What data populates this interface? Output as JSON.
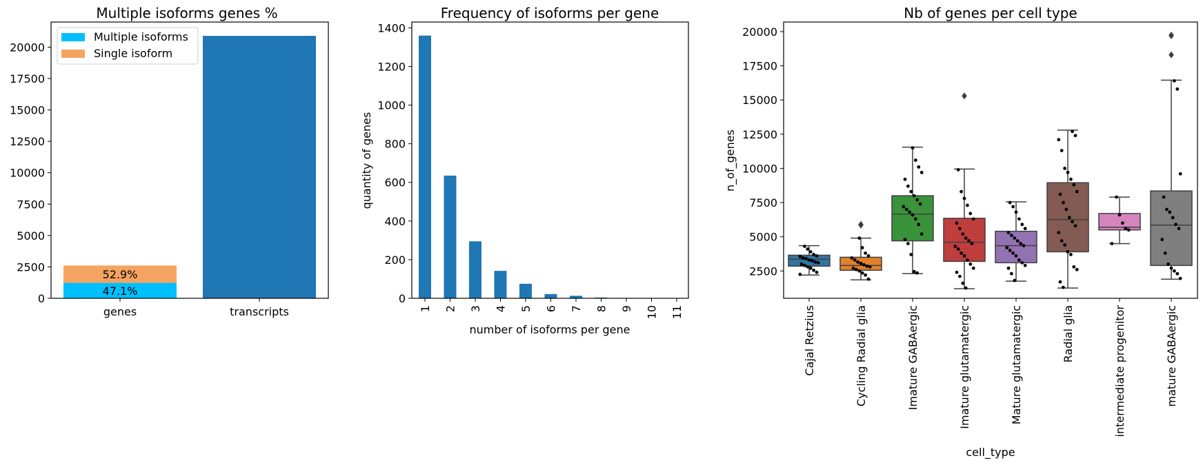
{
  "chart_data": [
    {
      "type": "bar",
      "title": "Multiple isoforms genes %",
      "xlabel": "",
      "ylabel": "",
      "categories": [
        "genes",
        "transcripts"
      ],
      "series": [
        {
          "name": "Multiple isoforms",
          "color": "#00bfff",
          "values": [
            1230,
            null
          ]
        },
        {
          "name": "Single isoform",
          "color": "#f4a460",
          "values": [
            1380,
            null
          ]
        },
        {
          "name": "",
          "color": "#1f77b4",
          "values": [
            null,
            20900
          ]
        }
      ],
      "bar_labels": [
        "47.1%",
        "52.9%"
      ],
      "ylim": [
        0,
        22000
      ],
      "yticks": [
        0,
        2500,
        5000,
        7500,
        10000,
        12500,
        15000,
        17500,
        20000
      ],
      "legend": "top-left"
    },
    {
      "type": "bar",
      "title": "Frequency of isoforms per gene",
      "xlabel": "number of isoforms per gene",
      "ylabel": "quantity of genes",
      "categories": [
        "1",
        "2",
        "3",
        "4",
        "5",
        "6",
        "7",
        "8",
        "9",
        "10",
        "11"
      ],
      "values": [
        1360,
        635,
        295,
        142,
        75,
        22,
        13,
        4,
        2,
        1,
        1
      ],
      "color": "#1f77b4",
      "ylim": [
        0,
        1430
      ],
      "yticks": [
        0,
        200,
        400,
        600,
        800,
        1000,
        1200,
        1400
      ]
    },
    {
      "type": "box",
      "title": "Nb of genes per cell type",
      "xlabel": "cell_type",
      "ylabel": "n_of_genes",
      "categories": [
        "Cajal Retzius",
        "Cycling Radial glia",
        "Imature GABAergic",
        "Imature glutamatergic",
        "Mature glutamatergic",
        "Radial glia",
        "intermediate progenitor",
        "mature GABAergic"
      ],
      "ylim": [
        500,
        20700
      ],
      "yticks": [
        2500,
        5000,
        7500,
        10000,
        12500,
        15000,
        17500,
        20000
      ],
      "boxes": [
        {
          "color": "#3274a1",
          "whislo": 2200,
          "q1": 2850,
          "med": 3350,
          "q3": 3650,
          "whishi": 4350,
          "fliers": [],
          "points": [
            2250,
            2400,
            2550,
            2700,
            2800,
            2900,
            3000,
            3100,
            3150,
            3250,
            3300,
            3400,
            3450,
            3550,
            3600,
            3700,
            3900,
            4100,
            4300
          ]
        },
        {
          "color": "#e1812c",
          "whislo": 1850,
          "q1": 2550,
          "med": 2900,
          "q3": 3500,
          "whishi": 4900,
          "fliers": [
            5850,
            5900
          ],
          "points": [
            1900,
            2200,
            2350,
            2500,
            2600,
            2700,
            2800,
            2850,
            2950,
            3050,
            3150,
            3300,
            3450,
            3600,
            3800,
            4200,
            4900
          ]
        },
        {
          "color": "#3a923a",
          "whislo": 2300,
          "q1": 4700,
          "med": 6650,
          "q3": 8000,
          "whishi": 11550,
          "fliers": [],
          "points": [
            2350,
            2450,
            3700,
            4500,
            4800,
            5200,
            5900,
            6300,
            6600,
            6800,
            7000,
            7200,
            7400,
            7700,
            8000,
            8300,
            8700,
            9200,
            9700,
            10100,
            10600,
            11500
          ]
        },
        {
          "color": "#c03d3e",
          "whislo": 1200,
          "q1": 3200,
          "med": 4600,
          "q3": 6350,
          "whishi": 9950,
          "fliers": [
            15300
          ],
          "points": [
            1250,
            1600,
            2100,
            2400,
            2700,
            3000,
            3300,
            3600,
            3800,
            4100,
            4300,
            4500,
            4700,
            4900,
            5200,
            5600,
            6000,
            6300,
            6700,
            7300,
            7800,
            8300,
            9900
          ]
        },
        {
          "color": "#9372b2",
          "whislo": 1750,
          "q1": 3100,
          "med": 4350,
          "q3": 5400,
          "whishi": 7550,
          "fliers": [],
          "points": [
            1800,
            2300,
            2700,
            2900,
            3100,
            3300,
            3600,
            3800,
            4000,
            4200,
            4350,
            4500,
            4700,
            4900,
            5100,
            5300,
            5600,
            5900,
            6300,
            6800,
            7200,
            7500
          ]
        },
        {
          "color": "#845b53",
          "whislo": 1250,
          "q1": 3900,
          "med": 6250,
          "q3": 8950,
          "whishi": 12800,
          "fliers": [],
          "points": [
            1300,
            1700,
            2600,
            2800,
            3700,
            3900,
            4400,
            4700,
            5300,
            5800,
            6100,
            6400,
            7000,
            7500,
            8100,
            8300,
            8800,
            9200,
            9700,
            10000,
            11300,
            12100,
            12400,
            12700
          ]
        },
        {
          "color": "#d684bd",
          "whislo": 4500,
          "q1": 5500,
          "med": 5700,
          "q3": 6700,
          "whishi": 7900,
          "fliers": [],
          "points": [
            4500,
            5500,
            5600,
            6000,
            6600,
            7900
          ]
        },
        {
          "color": "#7f7f7f",
          "whislo": 1900,
          "q1": 2900,
          "med": 5850,
          "q3": 8350,
          "whishi": 16450,
          "fliers": [
            18300,
            19700,
            19750
          ],
          "points": [
            1950,
            2300,
            2500,
            2700,
            3000,
            3800,
            4800,
            5600,
            5900,
            6400,
            6800,
            7000,
            7900,
            9600,
            15800,
            16400
          ]
        }
      ]
    }
  ]
}
